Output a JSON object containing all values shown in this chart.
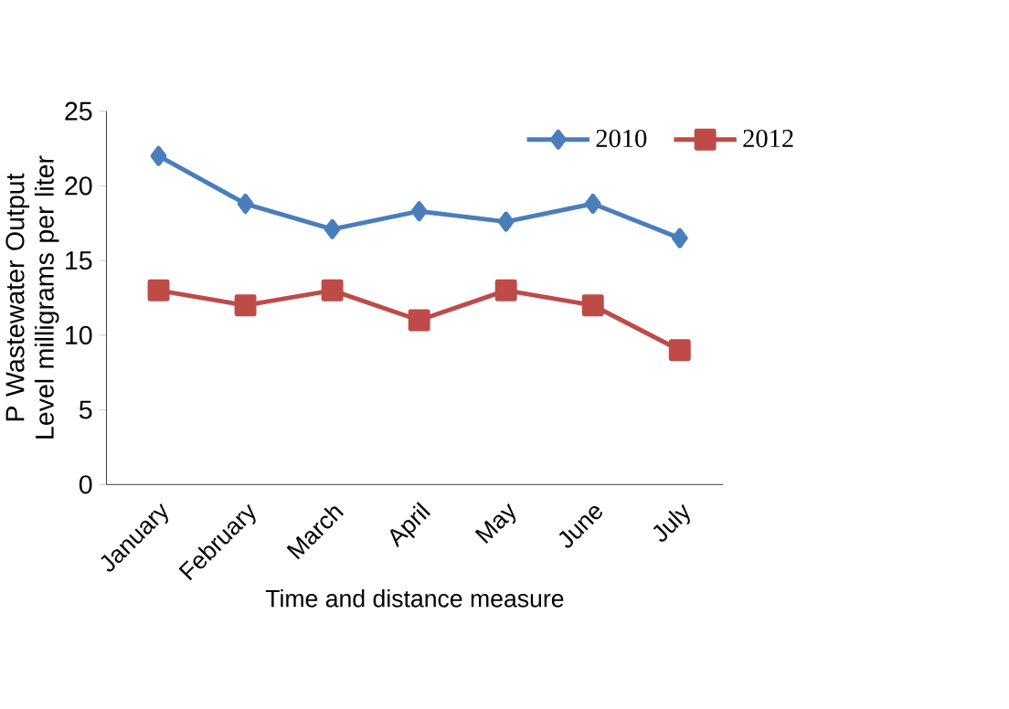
{
  "chart_data": {
    "type": "line",
    "xlabel": "Time and distance measure",
    "ylabel": "P Wastewater Output Level milligrams per liter",
    "categories": [
      "January",
      "February",
      "March",
      "April",
      "May",
      "June",
      "July"
    ],
    "series": [
      {
        "name": "2010",
        "color": "#4a7ebb",
        "marker": "diamond",
        "values": [
          22,
          18.8,
          17.1,
          18.3,
          17.6,
          18.8,
          16.5
        ]
      },
      {
        "name": "2012",
        "color": "#be4b48",
        "marker": "square",
        "values": [
          13,
          12,
          13,
          11,
          13,
          12,
          9
        ]
      }
    ],
    "ylim": [
      0,
      25
    ],
    "yticks": [
      0,
      5,
      10,
      15,
      20,
      25
    ],
    "legend": "top right",
    "grid": false
  }
}
